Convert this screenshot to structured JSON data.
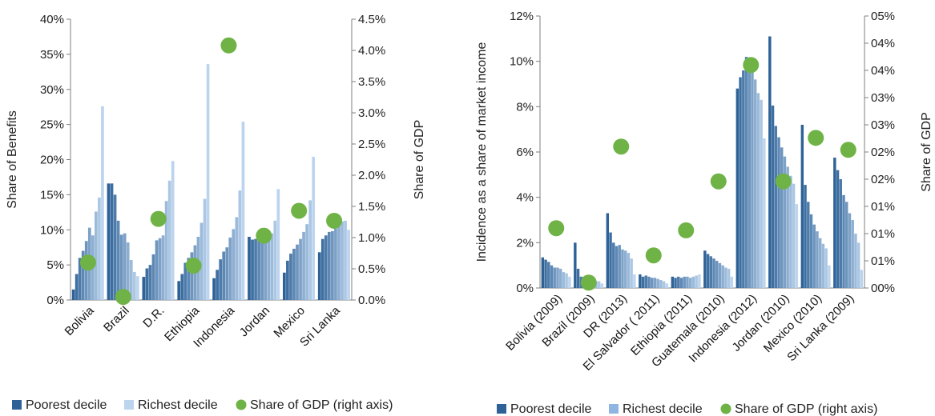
{
  "colors": {
    "poorest": "#2e6297",
    "richest": "#bcd4ee",
    "gdp_dot": "#6fb346",
    "axis": "#7f7f7f"
  },
  "chart_data": [
    {
      "type": "bar",
      "subtype": "grouped-decile-bars-with-dots",
      "categories": [
        "Bolivia",
        "Brazil",
        "D.R.",
        "Ethiopia",
        "Indonesia",
        "Jordan",
        "Mexico",
        "Sri Lanka"
      ],
      "series": [
        {
          "name": "Decile values (poorest → richest)",
          "values": [
            [
              1.5,
              3.7,
              6.0,
              7.0,
              8.4,
              10.3,
              9.2,
              12.6,
              14.6,
              27.6
            ],
            [
              16.6,
              16.6,
              15.0,
              11.3,
              9.3,
              9.5,
              8.2,
              5.7,
              4.0,
              3.4
            ],
            [
              3.3,
              4.5,
              5.0,
              6.5,
              8.5,
              8.8,
              9.2,
              14.1,
              17.0,
              19.8
            ],
            [
              2.7,
              3.7,
              5.3,
              6.0,
              6.8,
              7.8,
              9.0,
              11.0,
              14.4,
              33.6
            ],
            [
              3.1,
              4.3,
              5.8,
              6.9,
              7.5,
              8.9,
              10.1,
              11.8,
              15.6,
              25.4
            ],
            [
              9.0,
              8.6,
              8.7,
              8.8,
              9.0,
              9.7,
              9.9,
              9.5,
              11.3,
              15.8
            ],
            [
              3.9,
              5.6,
              6.6,
              7.3,
              7.9,
              8.7,
              9.7,
              10.8,
              14.2,
              20.4
            ],
            [
              6.8,
              8.7,
              9.2,
              9.7,
              9.8,
              10.2,
              10.8,
              11.2,
              11.3,
              10.0
            ]
          ]
        },
        {
          "name": "Share of GDP (right axis)",
          "values": [
            0.6,
            0.05,
            1.3,
            0.55,
            4.08,
            1.03,
            1.43,
            1.27
          ]
        }
      ],
      "legend": [
        "Poorest decile",
        "Richest decile",
        "Share of GDP (right axis)"
      ],
      "legend_position": "bottom",
      "ylabel": "Share of Benefits",
      "y2label": "Share of GDP",
      "ylim": [
        0,
        40
      ],
      "y2lim": [
        0,
        4.5
      ],
      "yticks": [
        "0%",
        "5%",
        "10%",
        "15%",
        "20%",
        "25%",
        "30%",
        "35%",
        "40%"
      ],
      "y2ticks": [
        "0.0%",
        "0.5%",
        "1.0%",
        "1.5%",
        "2.0%",
        "2.5%",
        "3.0%",
        "3.5%",
        "4.0%",
        "4.5%"
      ],
      "grid": false
    },
    {
      "type": "bar",
      "subtype": "grouped-decile-bars-with-dots",
      "categories": [
        "Bolivia (2009)",
        "Brazil (2009)",
        "DR (2013)",
        "El Salvador ( 2011)",
        "Ethiopia (2011)",
        "Guatemala (2010)",
        "Indonesia (2012)",
        "Jordan (2010)",
        "Mexico (2010)",
        "Sri Lanka (2009)"
      ],
      "series": [
        {
          "name": "Decile values (poorest → richest)",
          "values": [
            [
              1.35,
              1.25,
              1.15,
              1.0,
              0.9,
              0.9,
              0.85,
              0.7,
              0.65,
              0.5
            ],
            [
              2.0,
              0.85,
              0.5,
              0.45,
              0.4,
              0.4,
              0.35,
              0.3,
              0.3,
              0.2
            ],
            [
              3.3,
              2.45,
              2.0,
              1.85,
              1.9,
              1.7,
              1.65,
              1.55,
              1.3,
              0.6
            ],
            [
              0.6,
              0.5,
              0.55,
              0.5,
              0.45,
              0.45,
              0.4,
              0.35,
              0.3,
              0.2
            ],
            [
              0.5,
              0.45,
              0.5,
              0.45,
              0.5,
              0.5,
              0.45,
              0.5,
              0.55,
              0.6
            ],
            [
              1.65,
              1.5,
              1.4,
              1.3,
              1.2,
              1.1,
              1.0,
              0.9,
              0.85,
              0.5
            ],
            [
              8.8,
              9.3,
              9.6,
              10.2,
              9.7,
              9.6,
              9.2,
              8.6,
              8.3,
              6.6
            ],
            [
              11.1,
              8.05,
              7.15,
              6.65,
              6.2,
              5.8,
              5.35,
              4.95,
              4.6,
              3.7
            ],
            [
              7.2,
              4.55,
              3.8,
              3.25,
              2.8,
              2.5,
              2.2,
              1.95,
              1.75,
              1.0
            ],
            [
              5.75,
              5.2,
              4.8,
              4.1,
              3.8,
              3.3,
              3.0,
              2.4,
              2.0,
              0.8
            ]
          ]
        },
        {
          "name": "Share of GDP (right axis)",
          "values": [
            0.55,
            0.05,
            1.3,
            0.3,
            0.53,
            0.98,
            2.05,
            0.98,
            1.38,
            1.27
          ]
        }
      ],
      "legend": [
        "Poorest decile",
        "Richest decile",
        "Share of GDP (right axis)"
      ],
      "legend_position": "bottom",
      "ylabel": "Incidence as a share of market income",
      "y2label": "Share of GDP",
      "ylim": [
        0,
        12
      ],
      "y2lim": [
        0,
        2.5
      ],
      "yticks": [
        "0%",
        "2%",
        "4%",
        "6%",
        "8%",
        "10%",
        "12%"
      ],
      "y2ticks": [
        "00%",
        "01%",
        "01%",
        "01%",
        "02%",
        "02%",
        "03%",
        "03%",
        "04%",
        "04%",
        "05%"
      ],
      "grid": false
    }
  ]
}
